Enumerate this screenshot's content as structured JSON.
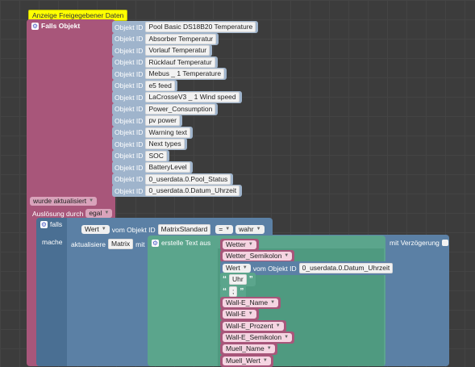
{
  "comment": "Anzeige Freigegebener Daten",
  "trigger": {
    "falls_label": "Falls Objekt",
    "objekt_id_label": "Objekt ID",
    "objects": [
      "Pool Basic DS18B20  Temperature",
      "Absorber Temperatur",
      "Vorlauf Temperatur",
      "Rücklauf Temperatur",
      "Mebus _ 1 Temperature",
      "e5 feed",
      "LaCrosseV3 _ 1 Wind speed",
      "Power_Consumption",
      "pv power",
      "Warning text",
      "Next types",
      "SOC",
      "BatteryLevel",
      "0_userdata.0.Pool_Status",
      "0_userdata.0.Datum_Uhrzeit"
    ],
    "wurde_label": "wurde aktualisiert",
    "ausloesung_label": "Auslösung durch",
    "ausloesung_value": "egal"
  },
  "if_block": {
    "falls_label": "falls",
    "wert_label": "Wert",
    "vom_objekt_label": "vom Objekt ID",
    "object": "MatrixStandard",
    "operator": "=",
    "value": "wahr",
    "mache_label": "mache"
  },
  "update_block": {
    "aktualisiere_label": "aktualisiere",
    "target": "Matrix",
    "mit_label": "mit",
    "verzoegerung_label": "mit Verzögerung"
  },
  "text_block": {
    "label": "erstelle Text aus",
    "items": [
      {
        "kind": "var",
        "text": "Wetter"
      },
      {
        "kind": "var",
        "text": "Wetter_Semikolon"
      },
      {
        "kind": "obj",
        "wert": "Wert",
        "vom": "vom Objekt ID",
        "text": "0_userdata.0.Datum_Uhrzeit"
      },
      {
        "kind": "str",
        "text": "Uhr"
      },
      {
        "kind": "str",
        "text": ";"
      },
      {
        "kind": "var",
        "text": "Wall-E_Name"
      },
      {
        "kind": "var",
        "text": "Wall-E"
      },
      {
        "kind": "var",
        "text": "Wall-E_Prozent"
      },
      {
        "kind": "var",
        "text": "Wall-E_Semikolon"
      },
      {
        "kind": "var",
        "text": "Muell_Name"
      },
      {
        "kind": "var",
        "text": "Muell_Wert"
      }
    ]
  },
  "colors": {
    "trigger": "#a8567a",
    "logic": "#5b80a5",
    "text": "#5ba58c",
    "comment": "#ffff00",
    "object_id": "#9fb4cc"
  }
}
